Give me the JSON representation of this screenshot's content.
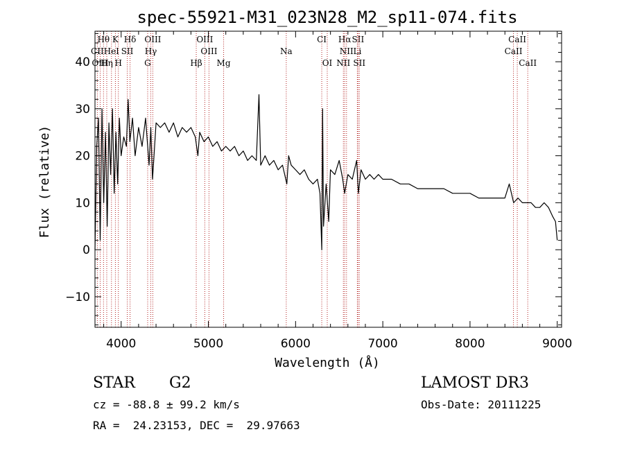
{
  "chart_data": {
    "type": "line",
    "title": "spec-55921-M31_023N28_M2_sp11-074.fits",
    "xlabel": "Wavelength (Å)",
    "ylabel": "Flux (relative)",
    "xlim": [
      3700,
      9050
    ],
    "ylim": [
      -16.5,
      46.5
    ],
    "xticks": [
      4000,
      5000,
      6000,
      7000,
      8000,
      9000
    ],
    "yticks": [
      -10,
      0,
      10,
      20,
      30,
      40
    ],
    "x_minor_step": 200,
    "y_minor_step": 2,
    "series": [
      {
        "name": "spectrum",
        "x": [
          3700,
          3720,
          3740,
          3760,
          3780,
          3800,
          3820,
          3840,
          3860,
          3880,
          3900,
          3920,
          3940,
          3960,
          3980,
          4000,
          4030,
          4060,
          4080,
          4100,
          4130,
          4160,
          4200,
          4240,
          4280,
          4300,
          4320,
          4340,
          4360,
          4400,
          4450,
          4500,
          4550,
          4600,
          4650,
          4700,
          4750,
          4800,
          4850,
          4880,
          4900,
          4950,
          5000,
          5050,
          5100,
          5150,
          5200,
          5250,
          5300,
          5350,
          5400,
          5450,
          5500,
          5550,
          5580,
          5600,
          5650,
          5700,
          5750,
          5800,
          5850,
          5900,
          5920,
          5950,
          6000,
          6050,
          6100,
          6150,
          6200,
          6250,
          6280,
          6300,
          6310,
          6320,
          6350,
          6380,
          6400,
          6450,
          6500,
          6540,
          6563,
          6600,
          6650,
          6700,
          6720,
          6750,
          6800,
          6850,
          6900,
          6950,
          7000,
          7100,
          7200,
          7300,
          7400,
          7500,
          7600,
          7700,
          7800,
          7900,
          8000,
          8100,
          8200,
          8300,
          8400,
          8450,
          8500,
          8550,
          8600,
          8650,
          8700,
          8750,
          8800,
          8850,
          8900,
          8950,
          8980,
          9000
        ],
        "values": [
          0,
          22,
          28,
          2,
          30,
          10,
          25,
          5,
          27,
          16,
          30,
          12,
          25,
          14,
          28,
          20,
          24,
          22,
          32,
          23,
          28,
          20,
          26,
          22,
          28,
          23,
          18,
          26,
          15,
          27,
          26,
          27,
          25,
          27,
          24,
          26,
          25,
          26,
          24,
          20,
          25,
          23,
          24,
          22,
          23,
          21,
          22,
          21,
          22,
          20,
          21,
          19,
          20,
          19,
          33,
          18,
          20,
          18,
          19,
          17,
          18,
          14,
          20,
          18,
          17,
          16,
          17,
          15,
          14,
          15,
          12,
          0,
          30,
          5,
          14,
          6,
          17,
          16,
          19,
          15,
          12,
          16,
          15,
          19,
          12,
          17,
          15,
          16,
          15,
          16,
          15,
          15,
          14,
          14,
          13,
          13,
          13,
          13,
          12,
          12,
          12,
          11,
          11,
          11,
          11,
          14,
          10,
          11,
          10,
          10,
          10,
          9,
          9,
          10,
          9,
          7,
          6,
          2
        ]
      }
    ],
    "line_markers": [
      {
        "name": "Hθ",
        "x": 3798,
        "row": 1
      },
      {
        "name": "K",
        "x": 3934,
        "row": 1
      },
      {
        "name": "Hδ",
        "x": 4102,
        "row": 1
      },
      {
        "name": "OIII",
        "x": 4363,
        "row": 1
      },
      {
        "name": "OIII",
        "x": 4959,
        "row": 1
      },
      {
        "name": "CI",
        "x": 6300,
        "row": 1
      },
      {
        "name": "Hα",
        "x": 6563,
        "row": 1
      },
      {
        "name": "SII",
        "x": 6716,
        "row": 1
      },
      {
        "name": "CaII",
        "x": 8542,
        "row": 1
      },
      {
        "name": "CII",
        "x": 3727,
        "row": 2
      },
      {
        "name": "HeI",
        "x": 3889,
        "row": 2
      },
      {
        "name": "SII",
        "x": 4070,
        "row": 2
      },
      {
        "name": "Hγ",
        "x": 4340,
        "row": 2
      },
      {
        "name": "OIII",
        "x": 5007,
        "row": 2
      },
      {
        "name": "Na",
        "x": 5893,
        "row": 2
      },
      {
        "name": "NII",
        "x": 6584,
        "row": 2
      },
      {
        "name": "Li",
        "x": 6708,
        "row": 2
      },
      {
        "name": "CaII",
        "x": 8498,
        "row": 2
      },
      {
        "name": "OIII",
        "x": 3760,
        "row": 3
      },
      {
        "name": "Hη",
        "x": 3835,
        "row": 3
      },
      {
        "name": "H",
        "x": 3968,
        "row": 3
      },
      {
        "name": "G",
        "x": 4304,
        "row": 3
      },
      {
        "name": "Hβ",
        "x": 4861,
        "row": 3
      },
      {
        "name": "Mg",
        "x": 5175,
        "row": 3
      },
      {
        "name": "OI",
        "x": 6363,
        "row": 3
      },
      {
        "name": "NII",
        "x": 6548,
        "row": 3
      },
      {
        "name": "SII",
        "x": 6731,
        "row": 3
      },
      {
        "name": "CaII",
        "x": 8662,
        "row": 3
      }
    ],
    "marker_color": "#b22222"
  },
  "info": {
    "object_class": "STAR",
    "subclass": "G2",
    "survey": "LAMOST DR3",
    "redshift_line": "cz = -88.8 ± 99.2 km/s",
    "obs_date_line": "Obs-Date: 20111225",
    "coords_line": "RA =  24.23153, DEC =  29.97663"
  }
}
